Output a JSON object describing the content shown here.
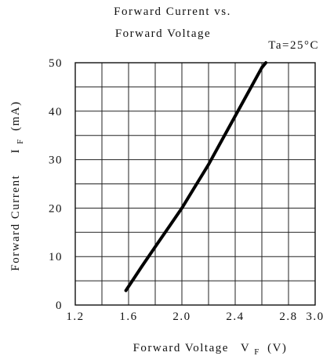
{
  "chart_data": {
    "type": "line",
    "title_line1": "Forward Current vs.",
    "title_line2": "Forward Voltage",
    "condition": "Ta=25°C",
    "xlabel": {
      "main": "Forward Voltage",
      "symbol": "V",
      "subscript": "F",
      "unit": "(V)"
    },
    "ylabel": {
      "main": "Forward Current",
      "symbol": "I",
      "subscript": "F",
      "unit": "(mA)"
    },
    "xlim": [
      1.2,
      3.0
    ],
    "ylim": [
      0,
      50
    ],
    "x_ticks": [
      "1.2",
      "1.6",
      "2.0",
      "2.4",
      "2.8",
      "3.0"
    ],
    "y_ticks": [
      "0",
      "10",
      "20",
      "30",
      "40",
      "50"
    ],
    "grid": true,
    "series": [
      {
        "x": [
          1.58,
          1.7,
          1.8,
          1.9,
          2.0,
          2.1,
          2.2,
          2.3,
          2.4,
          2.5,
          2.6,
          2.63
        ],
        "y": [
          3,
          8,
          12,
          16,
          20,
          24.5,
          29,
          34,
          39,
          44,
          49,
          50
        ]
      }
    ]
  }
}
